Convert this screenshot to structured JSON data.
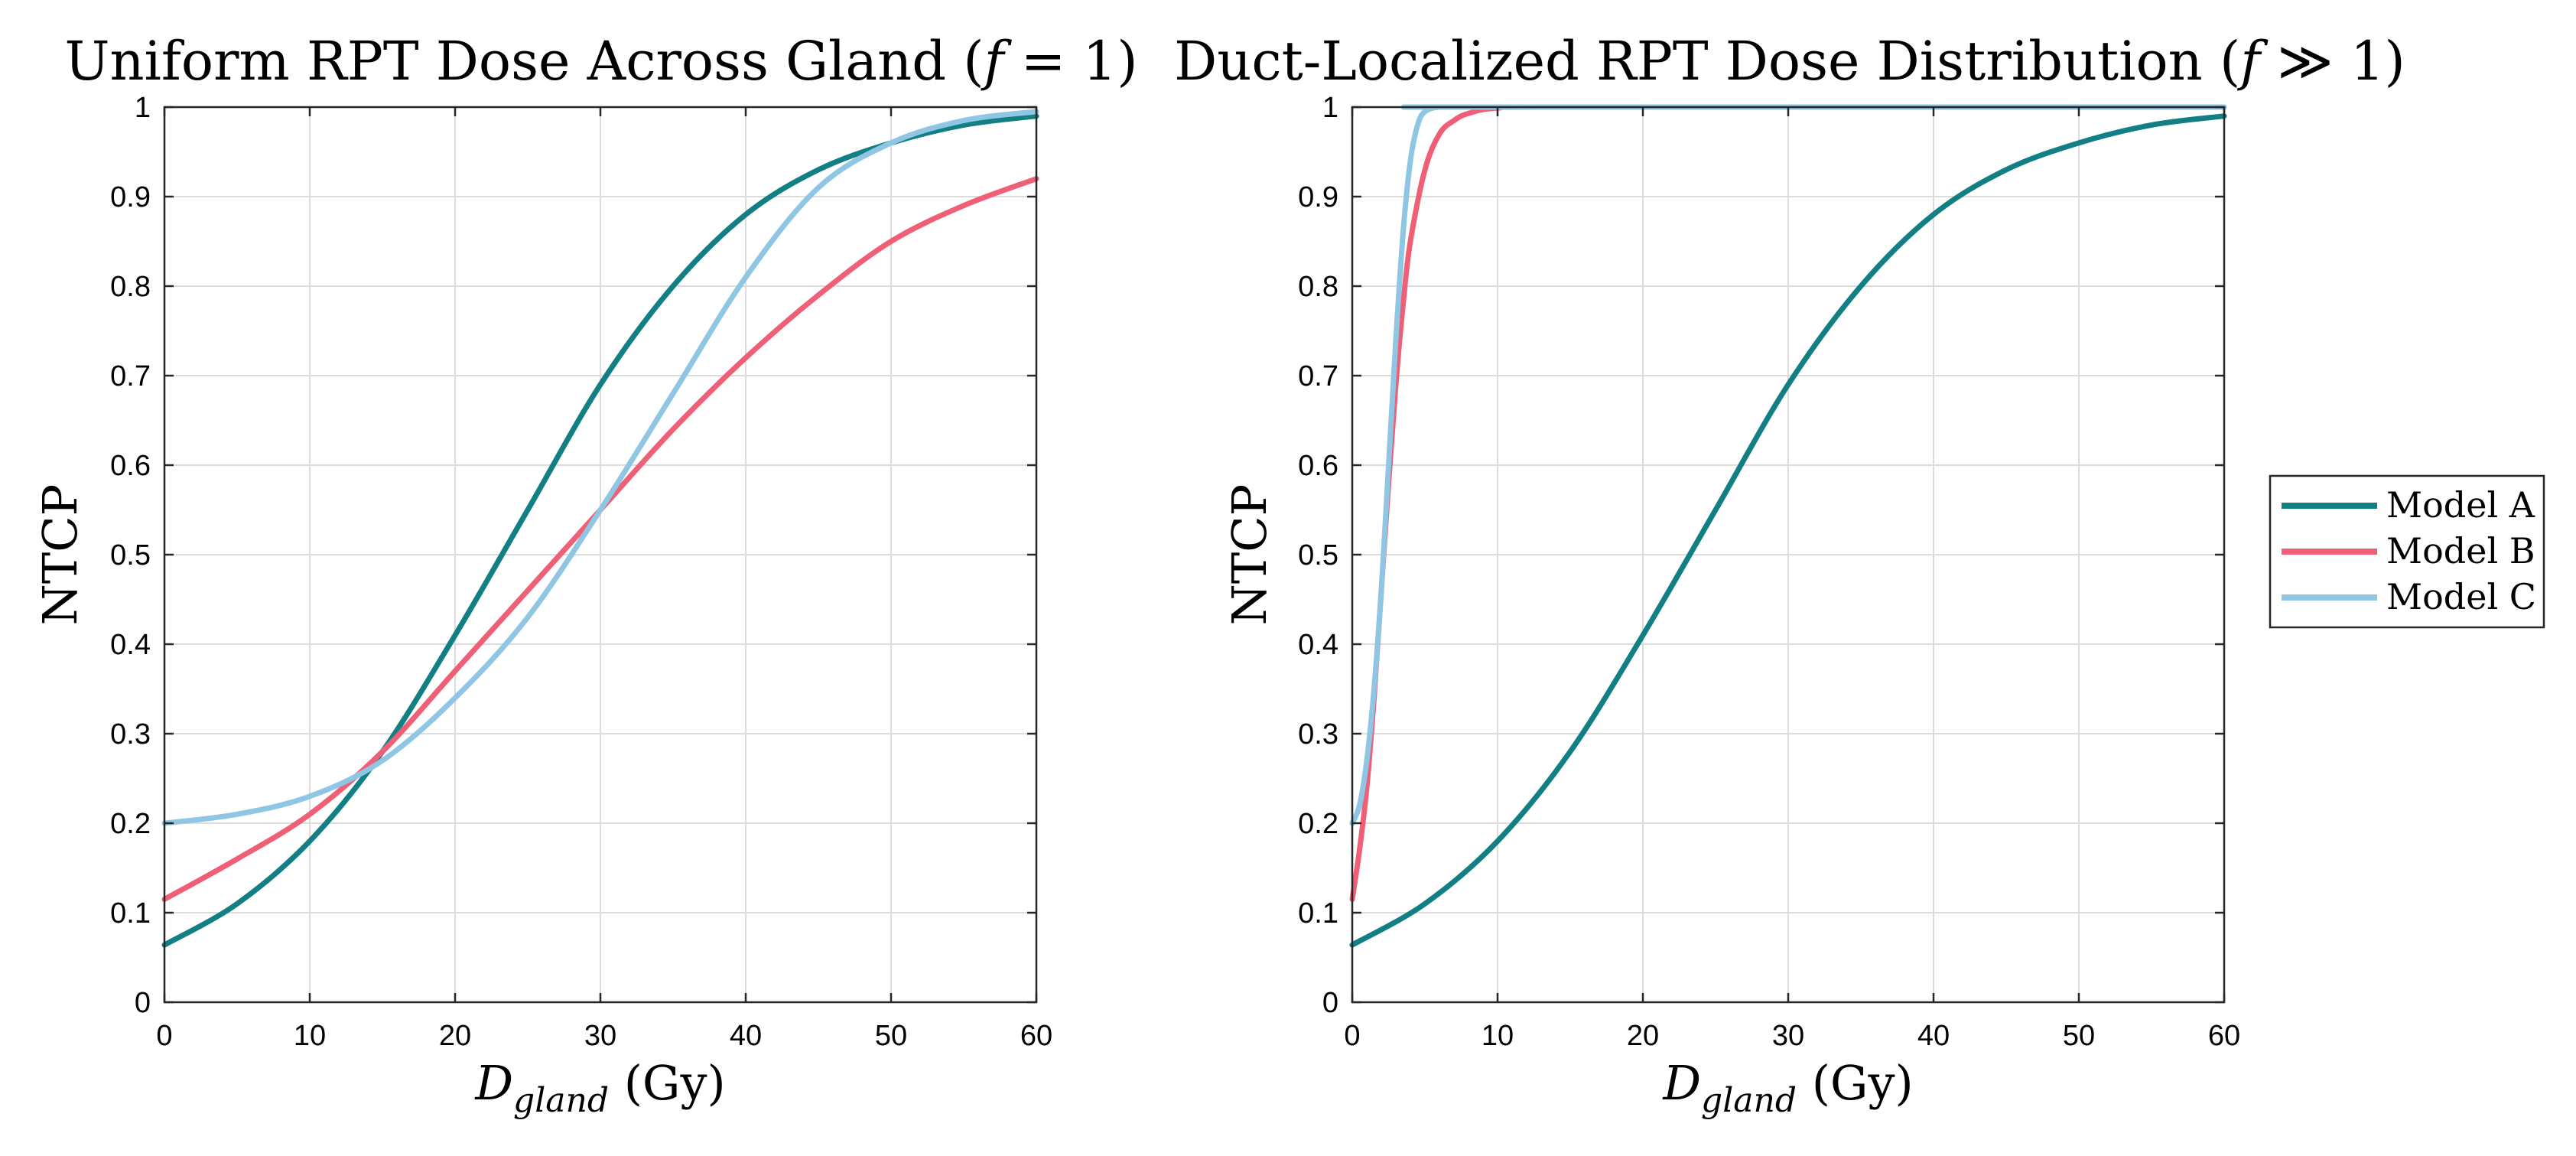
{
  "colors": {
    "model_a": "#127f85",
    "model_b": "#ef5f76",
    "model_c": "#8ec6e3"
  },
  "chart_data": [
    {
      "type": "line",
      "title": "Uniform RPT Dose Across Gland (𝑓 = 1)",
      "xlabel": "D",
      "xlabel_sub": "gland",
      "xlabel_unit": " (Gy)",
      "ylabel": "NTCP",
      "xlim": [
        0,
        60
      ],
      "ylim": [
        0,
        1
      ],
      "xticks": [
        "0",
        "10",
        "20",
        "30",
        "40",
        "50",
        "60"
      ],
      "yticks": [
        "0",
        "0.1",
        "0.2",
        "0.3",
        "0.4",
        "0.5",
        "0.6",
        "0.7",
        "0.8",
        "0.9",
        "1"
      ],
      "grid": true,
      "series": [
        {
          "name": "Model A",
          "color": "#127f85",
          "x": [
            0,
            5,
            10,
            15,
            20,
            25,
            30,
            35,
            40,
            45,
            50,
            55,
            60
          ],
          "y": [
            0.064,
            0.11,
            0.18,
            0.28,
            0.41,
            0.55,
            0.69,
            0.8,
            0.88,
            0.93,
            0.96,
            0.98,
            0.99
          ]
        },
        {
          "name": "Model B",
          "color": "#ef5f76",
          "x": [
            0,
            5,
            10,
            15,
            20,
            25,
            30,
            35,
            40,
            45,
            50,
            55,
            60
          ],
          "y": [
            0.115,
            0.16,
            0.21,
            0.28,
            0.37,
            0.46,
            0.55,
            0.64,
            0.72,
            0.79,
            0.85,
            0.89,
            0.92
          ]
        },
        {
          "name": "Model C",
          "color": "#8ec6e3",
          "x": [
            0,
            5,
            10,
            15,
            20,
            25,
            30,
            35,
            40,
            45,
            50,
            55,
            60
          ],
          "y": [
            0.2,
            0.21,
            0.23,
            0.27,
            0.34,
            0.43,
            0.55,
            0.68,
            0.81,
            0.91,
            0.96,
            0.985,
            0.995
          ]
        }
      ]
    },
    {
      "type": "line",
      "title": "Duct-Localized RPT Dose Distribution (𝑓 ≫ 1)",
      "xlabel": "D",
      "xlabel_sub": "gland",
      "xlabel_unit": " (Gy)",
      "ylabel": "NTCP",
      "xlim": [
        0,
        60
      ],
      "ylim": [
        0,
        1
      ],
      "xticks": [
        "0",
        "10",
        "20",
        "30",
        "40",
        "50",
        "60"
      ],
      "yticks": [
        "0",
        "0.1",
        "0.2",
        "0.3",
        "0.4",
        "0.5",
        "0.6",
        "0.7",
        "0.8",
        "0.9",
        "1"
      ],
      "grid": true,
      "legend_position": "outside-right",
      "series": [
        {
          "name": "Model A",
          "color": "#127f85",
          "x": [
            0,
            5,
            10,
            15,
            20,
            25,
            30,
            35,
            40,
            45,
            50,
            55,
            60
          ],
          "y": [
            0.064,
            0.11,
            0.18,
            0.28,
            0.41,
            0.55,
            0.69,
            0.8,
            0.88,
            0.93,
            0.96,
            0.98,
            0.99
          ]
        },
        {
          "name": "Model B",
          "color": "#ef5f76",
          "x": [
            0,
            0.5,
            1,
            1.5,
            2,
            2.5,
            3,
            3.5,
            4,
            5,
            6,
            7,
            8,
            10,
            15,
            60
          ],
          "y": [
            0.115,
            0.17,
            0.24,
            0.34,
            0.46,
            0.58,
            0.69,
            0.78,
            0.85,
            0.93,
            0.97,
            0.985,
            0.993,
            0.999,
            1,
            1
          ]
        },
        {
          "name": "Model C",
          "color": "#8ec6e3",
          "x": [
            0,
            0.5,
            1,
            1.5,
            2,
            2.5,
            3,
            3.5,
            4,
            4.5,
            5,
            6,
            8,
            60
          ],
          "y": [
            0.2,
            0.22,
            0.27,
            0.35,
            0.46,
            0.6,
            0.74,
            0.86,
            0.94,
            0.98,
            0.995,
            1,
            1,
            1
          ]
        }
      ]
    }
  ],
  "legend": {
    "items": [
      {
        "label": "Model A",
        "color": "#127f85"
      },
      {
        "label": "Model B",
        "color": "#ef5f76"
      },
      {
        "label": "Model C",
        "color": "#8ec6e3"
      }
    ]
  }
}
